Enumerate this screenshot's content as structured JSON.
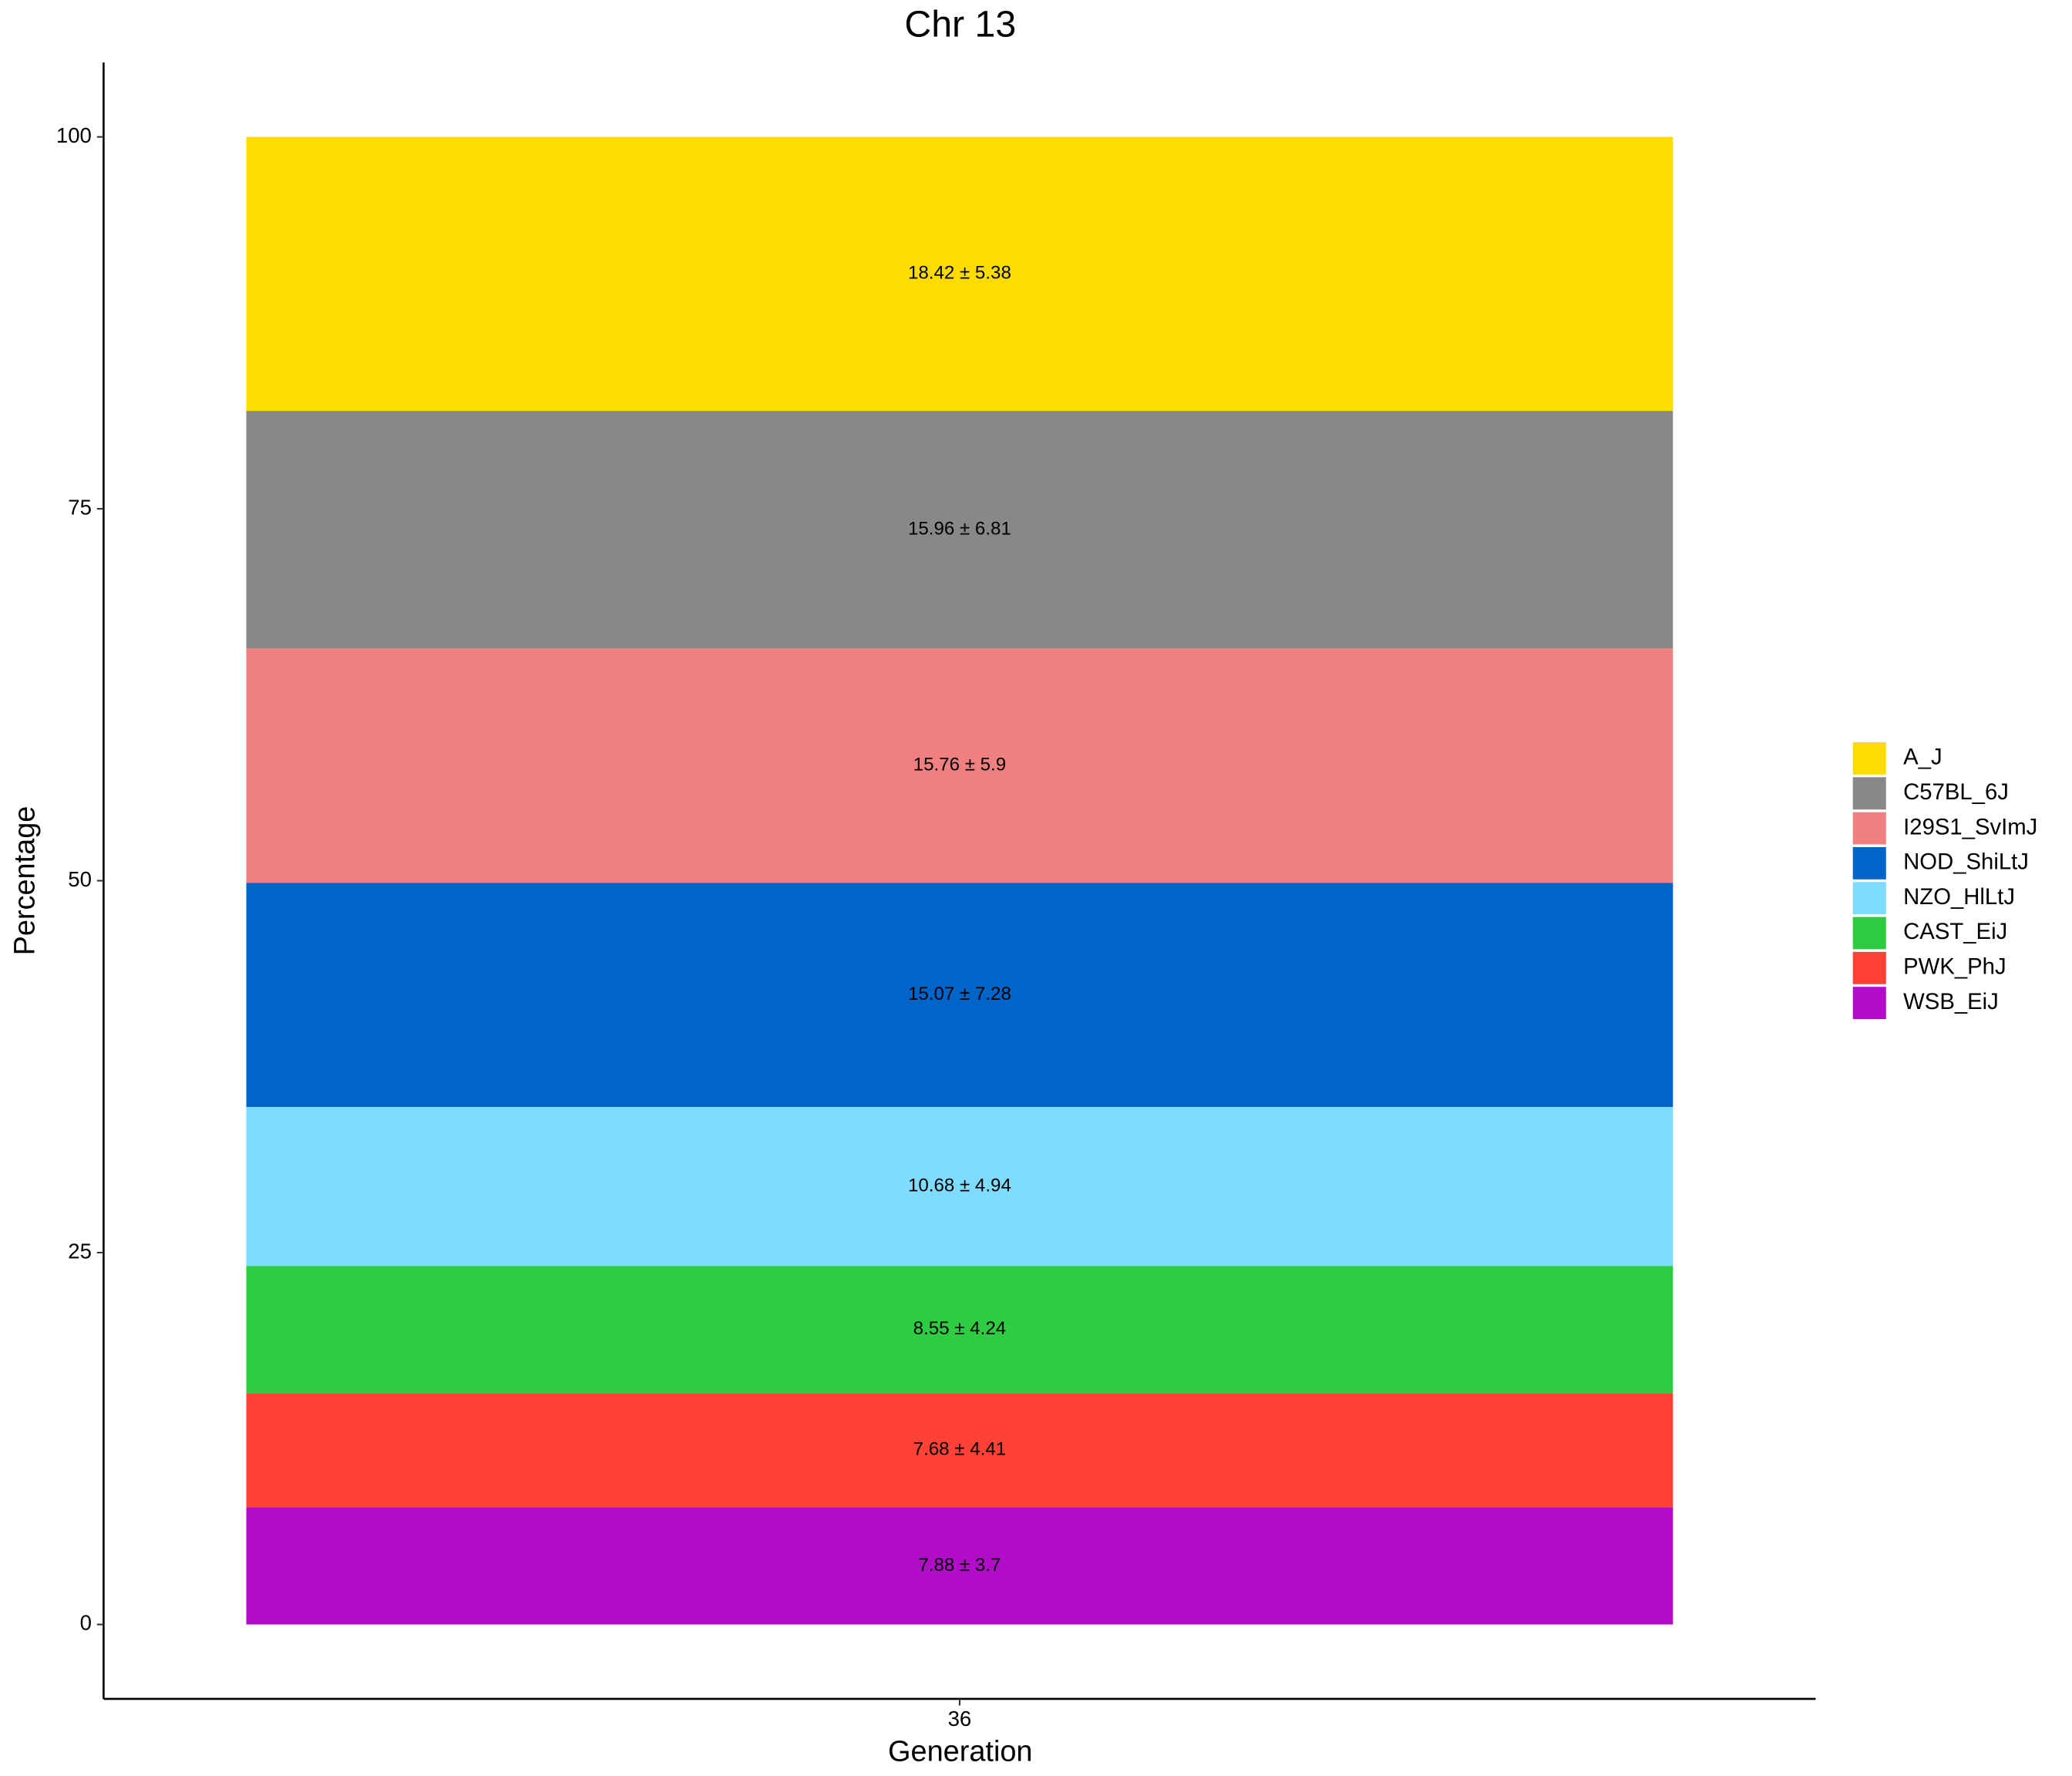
{
  "chart_data": {
    "type": "stacked-bar",
    "title": "Chr 13",
    "x_label": "Generation",
    "y_label": "Percentage",
    "categories": [
      "36"
    ],
    "series": [
      {
        "name": "A_J",
        "color": "#FFDC00",
        "values": [
          18.42
        ],
        "value_labels": [
          "18.42 ± 5.38"
        ]
      },
      {
        "name": "C57BL_6J",
        "color": "#888888",
        "values": [
          15.96
        ],
        "value_labels": [
          "15.96 ± 6.81"
        ]
      },
      {
        "name": "I29S1_SvImJ",
        "color": "#F08080",
        "values": [
          15.76
        ],
        "value_labels": [
          "15.76 ± 5.9"
        ]
      },
      {
        "name": "NOD_ShiLtJ",
        "color": "#0064C9",
        "values": [
          15.07
        ],
        "value_labels": [
          "15.07 ± 7.28"
        ]
      },
      {
        "name": "NZO_HlLtJ",
        "color": "#7FDBFF",
        "values": [
          10.68
        ],
        "value_labels": [
          "10.68 ± 4.94"
        ]
      },
      {
        "name": "CAST_EiJ",
        "color": "#2ECC40",
        "values": [
          8.55
        ],
        "value_labels": [
          "8.55 ± 4.24"
        ]
      },
      {
        "name": "PWK_PhJ",
        "color": "#FF4136",
        "values": [
          7.68
        ],
        "value_labels": [
          "7.68 ± 4.41"
        ]
      },
      {
        "name": "WSB_EiJ",
        "color": "#B10DC9",
        "values": [
          7.88
        ],
        "value_labels": [
          "7.88 ± 3.7"
        ]
      }
    ],
    "ylim": [
      -5,
      105
    ],
    "yticks": [
      0,
      25,
      50,
      75,
      100
    ],
    "grid": false,
    "legend": "right"
  }
}
